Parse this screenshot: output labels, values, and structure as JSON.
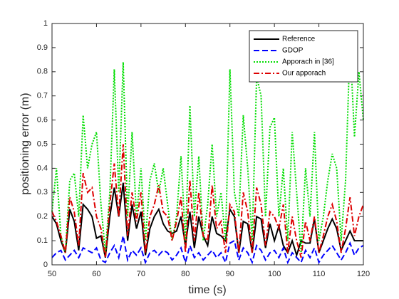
{
  "chart_data": {
    "type": "line",
    "xlabel": "time (s)",
    "ylabel": "positioning error (m)",
    "x": [
      50,
      51,
      52,
      53,
      54,
      55,
      56,
      57,
      58,
      59,
      60,
      61,
      62,
      63,
      64,
      65,
      66,
      67,
      68,
      69,
      70,
      71,
      72,
      73,
      74,
      75,
      76,
      77,
      78,
      79,
      80,
      81,
      82,
      83,
      84,
      85,
      86,
      87,
      88,
      89,
      90,
      91,
      92,
      93,
      94,
      95,
      96,
      97,
      98,
      99,
      100,
      101,
      102,
      103,
      104,
      105,
      106,
      107,
      108,
      109,
      110,
      111,
      112,
      113,
      114,
      115,
      116,
      117,
      118,
      119,
      120
    ],
    "series": [
      {
        "name": "Reference",
        "color": "#000000",
        "style": "solid",
        "values": [
          0.2,
          0.17,
          0.1,
          0.05,
          0.23,
          0.18,
          0.06,
          0.25,
          0.23,
          0.2,
          0.11,
          0.12,
          0.03,
          0.2,
          0.32,
          0.2,
          0.34,
          0.1,
          0.25,
          0.15,
          0.22,
          0.04,
          0.15,
          0.2,
          0.23,
          0.17,
          0.14,
          0.13,
          0.14,
          0.2,
          0.08,
          0.22,
          0.07,
          0.2,
          0.12,
          0.08,
          0.2,
          0.13,
          0.12,
          0.1,
          0.23,
          0.2,
          0.05,
          0.18,
          0.17,
          0.05,
          0.2,
          0.19,
          0.07,
          0.17,
          0.1,
          0.16,
          0.08,
          0.05,
          0.1,
          0.04,
          0.1,
          0.09,
          0.09,
          0.19,
          0.05,
          0.1,
          0.15,
          0.19,
          0.15,
          0.06,
          0.1,
          0.14,
          0.1,
          0.1,
          0.1
        ]
      },
      {
        "name": "GDOP",
        "color": "#0000ff",
        "style": "dashed",
        "values": [
          0.03,
          0.05,
          0.06,
          0.02,
          0.04,
          0.06,
          0.03,
          0.07,
          0.06,
          0.05,
          0.07,
          0.02,
          0.01,
          0.05,
          0.08,
          0.03,
          0.12,
          0.02,
          0.06,
          0.04,
          0.07,
          0.01,
          0.05,
          0.06,
          0.04,
          0.06,
          0.05,
          0.02,
          0.04,
          0.07,
          0.01,
          0.08,
          0.03,
          0.05,
          0.02,
          0.04,
          0.06,
          0.03,
          0.05,
          0.01,
          0.09,
          0.1,
          0.02,
          0.07,
          0.05,
          0.01,
          0.08,
          0.06,
          0.02,
          0.05,
          0.06,
          0.03,
          0.07,
          0.01,
          0.05,
          0.03,
          0.01,
          0.06,
          0.03,
          0.07,
          0.01,
          0.04,
          0.06,
          0.08,
          0.05,
          0.02,
          0.05,
          0.09,
          0.04,
          0.07,
          0.08
        ]
      },
      {
        "name": "Apporach in [36]",
        "color": "#00dd00",
        "style": "dotted",
        "values": [
          0.22,
          0.4,
          0.12,
          0.05,
          0.35,
          0.38,
          0.2,
          0.62,
          0.4,
          0.5,
          0.55,
          0.25,
          0.05,
          0.3,
          0.81,
          0.3,
          0.84,
          0.2,
          0.55,
          0.2,
          0.4,
          0.1,
          0.35,
          0.42,
          0.3,
          0.4,
          0.25,
          0.1,
          0.2,
          0.45,
          0.1,
          0.66,
          0.2,
          0.45,
          0.1,
          0.25,
          0.5,
          0.2,
          0.3,
          0.1,
          0.81,
          0.3,
          0.2,
          0.62,
          0.4,
          0.1,
          0.78,
          0.7,
          0.2,
          0.57,
          0.61,
          0.2,
          0.4,
          0.1,
          0.55,
          0.3,
          0.05,
          0.4,
          0.2,
          0.55,
          0.1,
          0.2,
          0.35,
          0.46,
          0.4,
          0.1,
          0.35,
          0.92,
          0.53,
          0.8,
          0.6
        ]
      },
      {
        "name": "Our apporach",
        "color": "#dd0000",
        "style": "dashdot",
        "values": [
          0.22,
          0.18,
          0.12,
          0.05,
          0.28,
          0.22,
          0.08,
          0.38,
          0.3,
          0.32,
          0.2,
          0.15,
          0.03,
          0.25,
          0.42,
          0.2,
          0.5,
          0.12,
          0.3,
          0.18,
          0.3,
          0.05,
          0.2,
          0.25,
          0.33,
          0.22,
          0.2,
          0.1,
          0.18,
          0.28,
          0.05,
          0.35,
          0.1,
          0.3,
          0.12,
          0.1,
          0.33,
          0.15,
          0.18,
          0.05,
          0.25,
          0.22,
          0.05,
          0.3,
          0.22,
          0.05,
          0.32,
          0.25,
          0.08,
          0.22,
          0.2,
          0.15,
          0.25,
          0.05,
          0.2,
          0.1,
          0.03,
          0.18,
          0.1,
          0.2,
          0.05,
          0.12,
          0.2,
          0.25,
          0.18,
          0.05,
          0.15,
          0.28,
          0.12,
          0.2,
          0.25
        ]
      }
    ],
    "xlim": [
      50,
      120
    ],
    "xticks": [
      50,
      60,
      70,
      80,
      90,
      100,
      110,
      120
    ],
    "ylim": [
      0,
      1
    ],
    "yticks": [
      0,
      0.1,
      0.2,
      0.3,
      0.4,
      0.5,
      0.6,
      0.7,
      0.8,
      0.9,
      1
    ],
    "legend": "northeast"
  }
}
